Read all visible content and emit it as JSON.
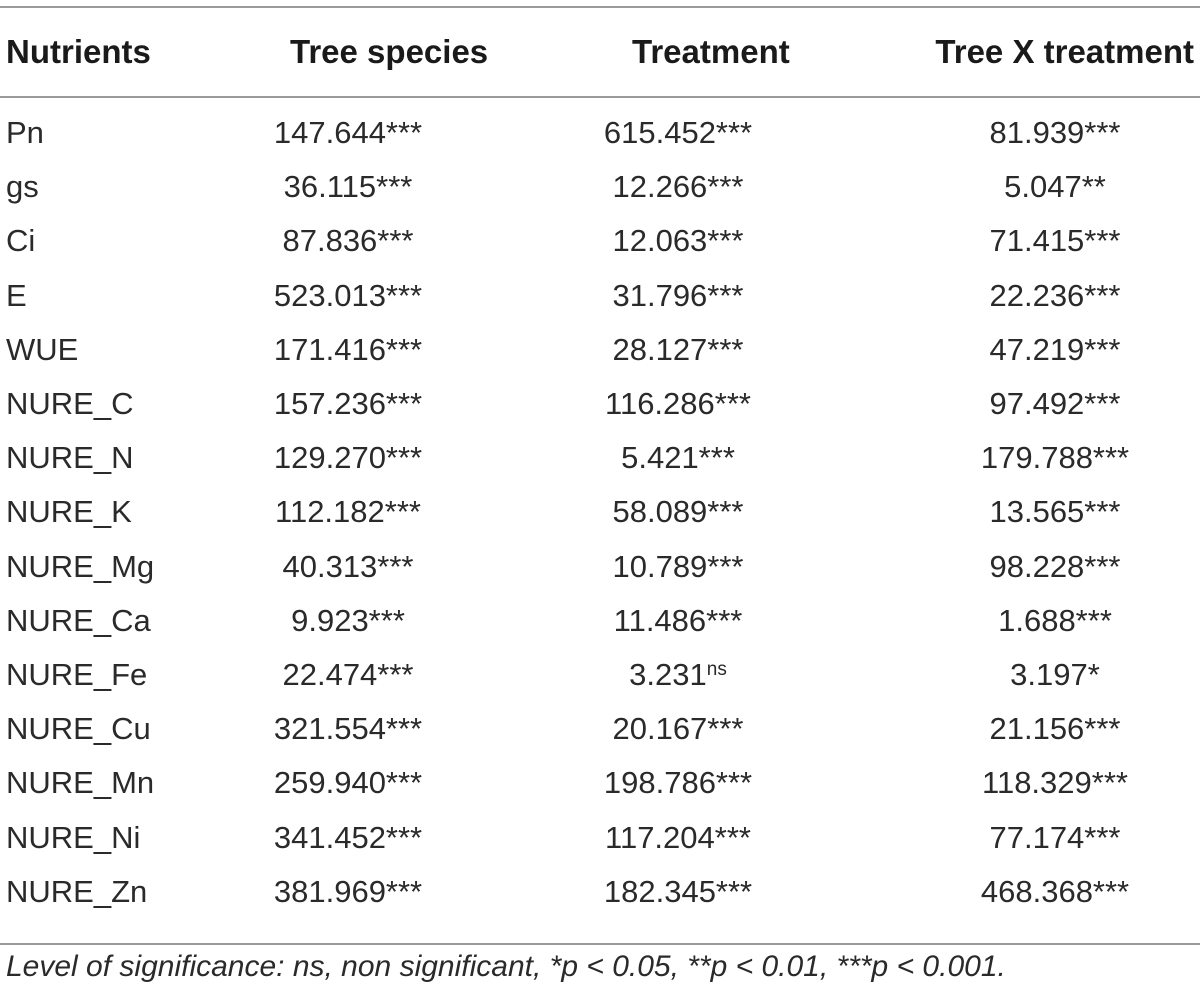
{
  "table": {
    "headers": [
      "Nutrients",
      "Tree species",
      "Treatment",
      "Tree X treatment"
    ],
    "rows": [
      {
        "name": "Pn",
        "tree": "147.644***",
        "treatment": "615.452***",
        "interaction": "81.939***"
      },
      {
        "name": "gs",
        "tree": "36.115***",
        "treatment": "12.266***",
        "interaction": "5.047**"
      },
      {
        "name": "Ci",
        "tree": "87.836***",
        "treatment": "12.063***",
        "interaction": "71.415***"
      },
      {
        "name": "E",
        "tree": "523.013***",
        "treatment": "31.796***",
        "interaction": "22.236***"
      },
      {
        "name": "WUE",
        "tree": "171.416***",
        "treatment": "28.127***",
        "interaction": "47.219***"
      },
      {
        "name": "NURE_C",
        "tree": "157.236***",
        "treatment": "116.286***",
        "interaction": "97.492***"
      },
      {
        "name": "NURE_N",
        "tree": "129.270***",
        "treatment": "5.421***",
        "interaction": "179.788***"
      },
      {
        "name": "NURE_K",
        "tree": "112.182***",
        "treatment": "58.089***",
        "interaction": "13.565***"
      },
      {
        "name": "NURE_Mg",
        "tree": "40.313***",
        "treatment": "10.789***",
        "interaction": "98.228***"
      },
      {
        "name": "NURE_Ca",
        "tree": "9.923***",
        "treatment": "11.486***",
        "interaction": "1.688***"
      },
      {
        "name": "NURE_Fe",
        "tree": "22.474***",
        "treatment": "3.231",
        "treatment_sup": "ns",
        "interaction": "3.197*"
      },
      {
        "name": "NURE_Cu",
        "tree": "321.554***",
        "treatment": "20.167***",
        "interaction": "21.156***"
      },
      {
        "name": "NURE_Mn",
        "tree": "259.940***",
        "treatment": "198.786***",
        "interaction": "118.329***"
      },
      {
        "name": "NURE_Ni",
        "tree": "341.452***",
        "treatment": "117.204***",
        "interaction": "77.174***"
      },
      {
        "name": "NURE_Zn",
        "tree": "381.969***",
        "treatment": "182.345***",
        "interaction": "468.368***"
      }
    ]
  },
  "footnote": "Level of significance: ns, non significant, *p < 0.05, **p < 0.01, ***p < 0.001."
}
